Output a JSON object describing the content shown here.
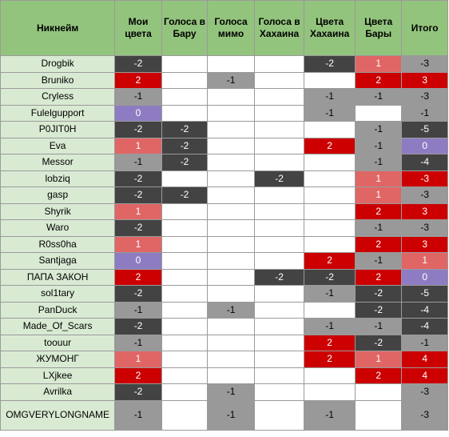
{
  "headers": [
    "Никнейм",
    "Мои цвета",
    "Голоса в Бару",
    "Голоса мимо",
    "Голоса в Хахаина",
    "Цвета Хахаина",
    "Цвета Бары",
    "Итого"
  ],
  "palette": {
    "dark": "#434343",
    "red": "#cc0000",
    "lred": "#e06666",
    "grey": "#999999",
    "purple": "#8e7cc3",
    "white": "#ffffff",
    "header_bg": "#93c47d",
    "nick_bg": "#d9ead3"
  },
  "rows": [
    {
      "nick": "Drogbik",
      "cells": [
        [
          "-2",
          "dark"
        ],
        [
          "",
          ""
        ],
        [
          "",
          ""
        ],
        [
          "",
          ""
        ],
        [
          "-2",
          "dark"
        ],
        [
          "1",
          "lred"
        ],
        [
          "-3",
          "grey"
        ]
      ]
    },
    {
      "nick": "Bruniko",
      "cells": [
        [
          "2",
          "red"
        ],
        [
          "",
          ""
        ],
        [
          "-1",
          "grey"
        ],
        [
          "",
          ""
        ],
        [
          "",
          ""
        ],
        [
          "2",
          "red"
        ],
        [
          "3",
          "red"
        ]
      ]
    },
    {
      "nick": "Cryless",
      "cells": [
        [
          "-1",
          "grey"
        ],
        [
          "",
          ""
        ],
        [
          "",
          ""
        ],
        [
          "",
          ""
        ],
        [
          "-1",
          "grey"
        ],
        [
          "-1",
          "grey"
        ],
        [
          "-3",
          "grey"
        ]
      ]
    },
    {
      "nick": "Fulelgupport",
      "cells": [
        [
          "0",
          "purple"
        ],
        [
          "",
          ""
        ],
        [
          "",
          ""
        ],
        [
          "",
          ""
        ],
        [
          "-1",
          "grey"
        ],
        [
          "",
          ""
        ],
        [
          "-1",
          "grey"
        ]
      ]
    },
    {
      "nick": "P0JIT0H",
      "cells": [
        [
          "-2",
          "dark"
        ],
        [
          "-2",
          "dark"
        ],
        [
          "",
          ""
        ],
        [
          "",
          ""
        ],
        [
          "",
          ""
        ],
        [
          "-1",
          "grey"
        ],
        [
          "-5",
          "dark"
        ]
      ]
    },
    {
      "nick": "Eva",
      "cells": [
        [
          "1",
          "lred"
        ],
        [
          "-2",
          "dark"
        ],
        [
          "",
          ""
        ],
        [
          "",
          ""
        ],
        [
          "2",
          "red"
        ],
        [
          "-1",
          "grey"
        ],
        [
          "0",
          "purple"
        ]
      ]
    },
    {
      "nick": "Messor",
      "cells": [
        [
          "-1",
          "grey"
        ],
        [
          "-2",
          "dark"
        ],
        [
          "",
          ""
        ],
        [
          "",
          ""
        ],
        [
          "",
          ""
        ],
        [
          "-1",
          "grey"
        ],
        [
          "-4",
          "dark"
        ]
      ]
    },
    {
      "nick": "lobziq",
      "cells": [
        [
          "-2",
          "dark"
        ],
        [
          "",
          ""
        ],
        [
          "",
          ""
        ],
        [
          "-2",
          "dark"
        ],
        [
          "",
          ""
        ],
        [
          "1",
          "lred"
        ],
        [
          "-3",
          "red"
        ]
      ]
    },
    {
      "nick": "gasp",
      "cells": [
        [
          "-2",
          "dark"
        ],
        [
          "-2",
          "dark"
        ],
        [
          "",
          ""
        ],
        [
          "",
          ""
        ],
        [
          "",
          ""
        ],
        [
          "1",
          "lred"
        ],
        [
          "-3",
          "grey"
        ]
      ]
    },
    {
      "nick": "Shyrik",
      "cells": [
        [
          "1",
          "lred"
        ],
        [
          "",
          ""
        ],
        [
          "",
          ""
        ],
        [
          "",
          ""
        ],
        [
          "",
          ""
        ],
        [
          "2",
          "red"
        ],
        [
          "3",
          "red"
        ]
      ]
    },
    {
      "nick": "Waro",
      "cells": [
        [
          "-2",
          "dark"
        ],
        [
          "",
          ""
        ],
        [
          "",
          ""
        ],
        [
          "",
          ""
        ],
        [
          "",
          ""
        ],
        [
          "-1",
          "grey"
        ],
        [
          "-3",
          "grey"
        ]
      ]
    },
    {
      "nick": "R0ss0ha",
      "cells": [
        [
          "1",
          "lred"
        ],
        [
          "",
          ""
        ],
        [
          "",
          ""
        ],
        [
          "",
          ""
        ],
        [
          "",
          ""
        ],
        [
          "2",
          "red"
        ],
        [
          "3",
          "red"
        ]
      ]
    },
    {
      "nick": "Santjaga",
      "cells": [
        [
          "0",
          "purple"
        ],
        [
          "",
          ""
        ],
        [
          "",
          ""
        ],
        [
          "",
          ""
        ],
        [
          "2",
          "red"
        ],
        [
          "-1",
          "grey"
        ],
        [
          "1",
          "lred"
        ]
      ]
    },
    {
      "nick": "ПАПА ЗАКОН",
      "cells": [
        [
          "2",
          "red"
        ],
        [
          "",
          ""
        ],
        [
          "",
          ""
        ],
        [
          "-2",
          "dark"
        ],
        [
          "-2",
          "dark"
        ],
        [
          "2",
          "red"
        ],
        [
          "0",
          "purple"
        ]
      ]
    },
    {
      "nick": "sol1tary",
      "cells": [
        [
          "-2",
          "dark"
        ],
        [
          "",
          ""
        ],
        [
          "",
          ""
        ],
        [
          "",
          ""
        ],
        [
          "-1",
          "grey"
        ],
        [
          "-2",
          "dark"
        ],
        [
          "-5",
          "dark"
        ]
      ]
    },
    {
      "nick": "PanDuck",
      "cells": [
        [
          "-1",
          "grey"
        ],
        [
          "",
          ""
        ],
        [
          "-1",
          "grey"
        ],
        [
          "",
          ""
        ],
        [
          "",
          ""
        ],
        [
          "-2",
          "dark"
        ],
        [
          "-4",
          "dark"
        ]
      ]
    },
    {
      "nick": "Made_Of_Scars",
      "cells": [
        [
          "-2",
          "dark"
        ],
        [
          "",
          ""
        ],
        [
          "",
          ""
        ],
        [
          "",
          ""
        ],
        [
          "-1",
          "grey"
        ],
        [
          "-1",
          "grey"
        ],
        [
          "-4",
          "dark"
        ]
      ]
    },
    {
      "nick": "toouur",
      "cells": [
        [
          "-1",
          "grey"
        ],
        [
          "",
          ""
        ],
        [
          "",
          ""
        ],
        [
          "",
          ""
        ],
        [
          "2",
          "red"
        ],
        [
          "-2",
          "dark"
        ],
        [
          "-1",
          "grey"
        ]
      ]
    },
    {
      "nick": "ЖУМОНГ",
      "cells": [
        [
          "1",
          "lred"
        ],
        [
          "",
          ""
        ],
        [
          "",
          ""
        ],
        [
          "",
          ""
        ],
        [
          "2",
          "red"
        ],
        [
          "1",
          "lred"
        ],
        [
          "4",
          "red"
        ]
      ]
    },
    {
      "nick": "LXjkee",
      "cells": [
        [
          "2",
          "red"
        ],
        [
          "",
          ""
        ],
        [
          "",
          ""
        ],
        [
          "",
          ""
        ],
        [
          "",
          ""
        ],
        [
          "2",
          "red"
        ],
        [
          "4",
          "red"
        ]
      ]
    },
    {
      "nick": "Avrilka",
      "cells": [
        [
          "-2",
          "dark"
        ],
        [
          "",
          ""
        ],
        [
          "-1",
          "grey"
        ],
        [
          "",
          ""
        ],
        [
          "",
          ""
        ],
        [
          "",
          ""
        ],
        [
          "-3",
          "grey"
        ]
      ]
    },
    {
      "nick": "OMGVERYLONGNAME",
      "cells": [
        [
          "-1",
          "grey"
        ],
        [
          "",
          ""
        ],
        [
          "-1",
          "grey"
        ],
        [
          "",
          ""
        ],
        [
          "-1",
          "grey"
        ],
        [
          "",
          ""
        ],
        [
          "-3",
          "grey"
        ]
      ]
    }
  ]
}
